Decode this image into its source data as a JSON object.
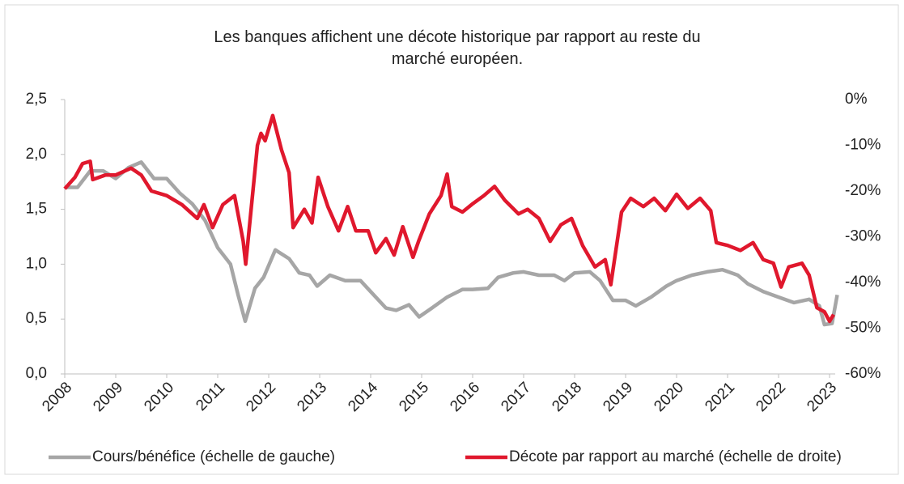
{
  "chart_data": {
    "type": "line",
    "title": "Les banques affichent une décote historique par rapport au reste du marché européen.",
    "xlim": [
      2008,
      2023.15
    ],
    "xticks": [
      2008,
      2009,
      2010,
      2011,
      2012,
      2013,
      2014,
      2015,
      2016,
      2017,
      2018,
      2019,
      2020,
      2021,
      2022,
      2023
    ],
    "ylim": [
      0,
      2.5
    ],
    "yticks": [
      {
        "value": 0,
        "label": "0,0"
      },
      {
        "value": 0.5,
        "label": "0,5"
      },
      {
        "value": 1,
        "label": "1,0"
      },
      {
        "value": 1.5,
        "label": "1,5"
      },
      {
        "value": 2,
        "label": "2,0"
      },
      {
        "value": 2.5,
        "label": "2,5"
      }
    ],
    "y2lim": [
      -60,
      0
    ],
    "y2ticks": [
      {
        "value": -60,
        "label": "-60%"
      },
      {
        "value": -50,
        "label": "-50%"
      },
      {
        "value": -40,
        "label": "-40%"
      },
      {
        "value": -30,
        "label": "-30%"
      },
      {
        "value": -20,
        "label": "-20%"
      },
      {
        "value": -10,
        "label": "-10%"
      },
      {
        "value": 0,
        "label": "0%"
      }
    ],
    "legend": "bottom",
    "series": [
      {
        "name": "Cours/bénéfice (échelle de gauche)",
        "color": "#a6a6a6",
        "axis": "y",
        "x": [
          2008.0,
          2008.25,
          2008.5,
          2008.75,
          2009.0,
          2009.25,
          2009.5,
          2009.75,
          2010.0,
          2010.25,
          2010.5,
          2010.75,
          2011.0,
          2011.25,
          2011.4,
          2011.54,
          2011.73,
          2011.9,
          2012.13,
          2012.4,
          2012.6,
          2012.8,
          2012.95,
          2013.2,
          2013.5,
          2013.8,
          2014.0,
          2014.3,
          2014.5,
          2014.75,
          2014.95,
          2015.2,
          2015.5,
          2015.8,
          2016.0,
          2016.3,
          2016.5,
          2016.8,
          2017.0,
          2017.3,
          2017.6,
          2017.8,
          2018.0,
          2018.3,
          2018.5,
          2018.75,
          2019.0,
          2019.2,
          2019.5,
          2019.8,
          2020.0,
          2020.3,
          2020.6,
          2020.9,
          2021.2,
          2021.4,
          2021.7,
          2022.0,
          2022.3,
          2022.6,
          2022.8,
          2022.9,
          2023.05,
          2023.15
        ],
        "values": [
          1.7,
          1.7,
          1.85,
          1.85,
          1.78,
          1.88,
          1.93,
          1.78,
          1.78,
          1.65,
          1.55,
          1.4,
          1.15,
          1.0,
          0.72,
          0.48,
          0.78,
          0.88,
          1.13,
          1.05,
          0.92,
          0.9,
          0.8,
          0.9,
          0.85,
          0.85,
          0.75,
          0.6,
          0.58,
          0.63,
          0.52,
          0.6,
          0.7,
          0.77,
          0.77,
          0.78,
          0.88,
          0.92,
          0.93,
          0.9,
          0.9,
          0.85,
          0.92,
          0.93,
          0.85,
          0.67,
          0.67,
          0.62,
          0.7,
          0.8,
          0.85,
          0.9,
          0.93,
          0.95,
          0.9,
          0.82,
          0.75,
          0.7,
          0.65,
          0.68,
          0.62,
          0.45,
          0.46,
          0.72
        ]
      },
      {
        "name": "Décote par rapport au marché (échelle de droite)",
        "color": "#e0182d",
        "axis": "y2",
        "x": [
          2008.0,
          2008.2,
          2008.35,
          2008.5,
          2008.55,
          2008.8,
          2009.0,
          2009.3,
          2009.5,
          2009.7,
          2010.0,
          2010.3,
          2010.6,
          2010.73,
          2010.9,
          2011.1,
          2011.33,
          2011.5,
          2011.55,
          2011.78,
          2011.85,
          2011.93,
          2012.08,
          2012.25,
          2012.4,
          2012.48,
          2012.7,
          2012.85,
          2012.97,
          2013.16,
          2013.37,
          2013.55,
          2013.71,
          2013.95,
          2014.1,
          2014.3,
          2014.46,
          2014.63,
          2014.83,
          2014.94,
          2015.15,
          2015.38,
          2015.5,
          2015.59,
          2015.8,
          2016.0,
          2016.22,
          2016.43,
          2016.63,
          2016.9,
          2017.08,
          2017.3,
          2017.52,
          2017.73,
          2017.94,
          2018.16,
          2018.4,
          2018.6,
          2018.71,
          2018.92,
          2019.1,
          2019.35,
          2019.56,
          2019.78,
          2020.0,
          2020.22,
          2020.46,
          2020.67,
          2020.78,
          2021.0,
          2021.25,
          2021.5,
          2021.7,
          2021.9,
          2022.05,
          2022.2,
          2022.46,
          2022.6,
          2022.75,
          2022.9,
          2023.0,
          2023.08
        ],
        "values": [
          -19.5,
          -17,
          -14,
          -13.5,
          -17.5,
          -16.5,
          -16.5,
          -15,
          -16.5,
          -20,
          -21,
          -23,
          -26,
          -23,
          -28,
          -23,
          -21,
          -31,
          -36,
          -10,
          -7.4,
          -9,
          -3.5,
          -11,
          -16,
          -28,
          -24,
          -27,
          -17,
          -23.4,
          -28.7,
          -23.4,
          -28.7,
          -28.7,
          -33.5,
          -30.4,
          -34,
          -27.8,
          -34.5,
          -31,
          -25,
          -21,
          -16.3,
          -23.4,
          -24.6,
          -22.8,
          -21,
          -19,
          -22,
          -25,
          -24,
          -26,
          -31,
          -27.4,
          -26,
          -32,
          -36.6,
          -35,
          -40.5,
          -24.6,
          -21.6,
          -23.4,
          -21.6,
          -24.3,
          -20.7,
          -23.8,
          -21.6,
          -24.3,
          -31.3,
          -31.9,
          -33,
          -31.3,
          -35,
          -35.8,
          -41,
          -36.6,
          -35.8,
          -38.4,
          -45.5,
          -46.4,
          -48.5,
          -47
        ]
      }
    ]
  }
}
